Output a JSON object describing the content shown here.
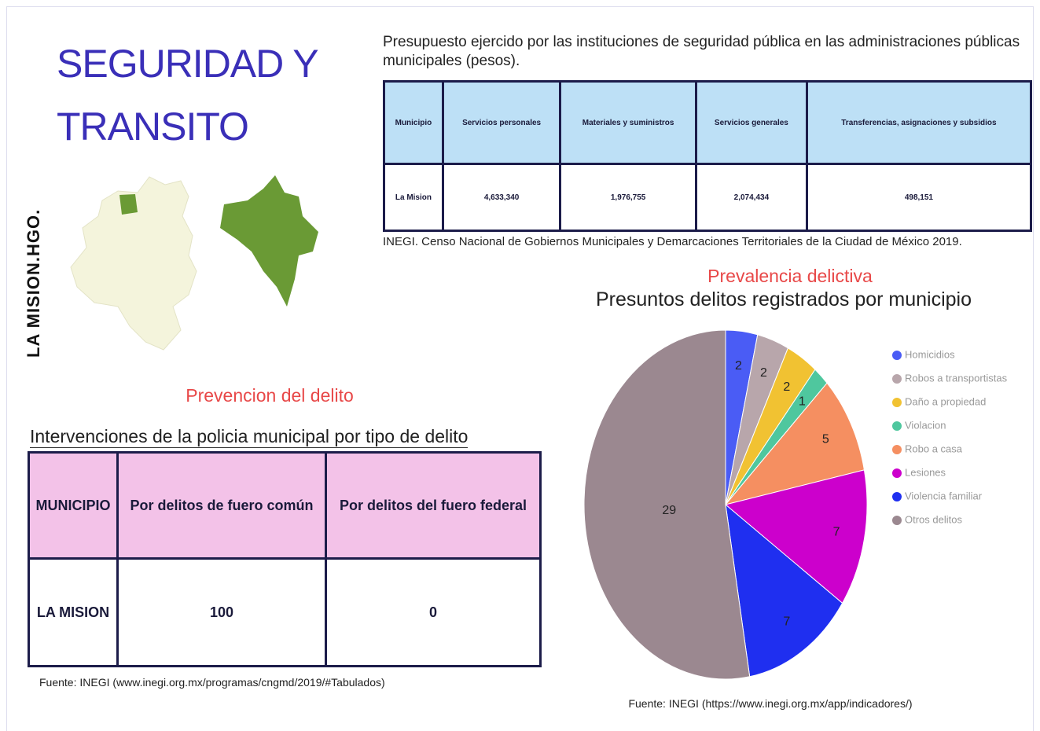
{
  "header": {
    "title_line1": "SEGURIDAD Y",
    "title_line2": "TRANSITO",
    "side_label": "LA MISION.HGO."
  },
  "budget": {
    "title": "Presupuesto ejercido por las instituciones de seguridad pública en las administraciones públicas municipales (pesos).",
    "table": {
      "headers": [
        "Municipio",
        "Servicios personales",
        "Materiales y suministros",
        "Servicios generales",
        "Transferencias, asignaciones y subsidios"
      ],
      "rows": [
        [
          "La Mision",
          "4,633,340",
          "1,976,755",
          "2,074,434",
          "498,151"
        ]
      ]
    },
    "source": "INEGI. Censo Nacional de Gobiernos Municipales y Demarcaciones Territoriales de la Ciudad de México 2019."
  },
  "prevention": {
    "title": "Prevencion del delito",
    "subtitle": "Intervenciones de la policia municipal por tipo de delito",
    "table": {
      "headers": [
        "MUNICIPIO",
        "Por delitos de fuero común",
        "Por delitos del fuero federal"
      ],
      "rows": [
        [
          "LA MISION",
          "100",
          "0"
        ]
      ]
    },
    "source": "Fuente: INEGI (www.inegi.org.mx/programas/cngmd/2019/#Tabulados)"
  },
  "chart_data": {
    "type": "pie",
    "title": "Prevalencia delictiva",
    "subtitle": "Presuntos delitos registrados por municipio",
    "categories": [
      "Homicidios",
      "Robos a transportistas",
      "Daño a propiedad",
      "Violacion",
      "Robo a casa",
      "Lesiones",
      "Violencia familiar",
      "Otros delitos"
    ],
    "values": [
      2,
      2,
      2,
      1,
      5,
      7,
      7,
      29
    ],
    "colors": [
      "#4a5cf5",
      "#b8a6ab",
      "#f1c232",
      "#4fc79e",
      "#f58f61",
      "#cc00cc",
      "#1f2ff0",
      "#9b8890"
    ],
    "legend": "right",
    "source": "Fuente: INEGI (https://www.inegi.org.mx/app/indicadores/)"
  }
}
